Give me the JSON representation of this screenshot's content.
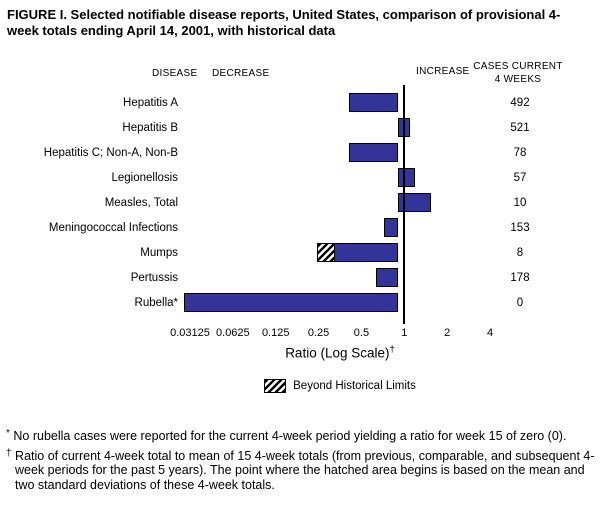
{
  "title": "FIGURE I. Selected notifiable disease reports, United States, comparison of provisional 4-week totals ending April 14, 2001, with historical data",
  "headers": {
    "disease": "DISEASE",
    "decrease": "DECREASE",
    "increase": "INCREASE",
    "cases_line1": "CASES CURRENT",
    "cases_line2": "4 WEEKS"
  },
  "chart_data": {
    "type": "bar",
    "orientation": "horizontal",
    "scale": "log",
    "x_range": [
      0.03125,
      4
    ],
    "baseline": 1,
    "x_ticks": [
      0.03125,
      0.0625,
      0.125,
      0.25,
      0.5,
      1,
      2,
      4
    ],
    "x_tick_labels": [
      "0.03125",
      "0.0625",
      "0.125",
      "0.25",
      "0.5",
      "1",
      "2",
      "4"
    ],
    "xlabel": "Ratio (Log Scale)",
    "xlabel_marker": "†",
    "legend_label": "Beyond Historical Limits",
    "bar_color": "#333399",
    "rows": [
      {
        "disease": "Hepatitis A",
        "ratio": 0.45,
        "cases": "492"
      },
      {
        "disease": "Hepatitis B",
        "ratio": 1.2,
        "cases": "521"
      },
      {
        "disease": "Hepatitis C; Non-A, Non-B",
        "ratio": 0.45,
        "cases": "78"
      },
      {
        "disease": "Legionellosis",
        "ratio": 1.3,
        "cases": "57"
      },
      {
        "disease": "Measles, Total",
        "ratio": 1.7,
        "cases": "10"
      },
      {
        "disease": "Meningococcal Infections",
        "ratio": 0.8,
        "cases": "153"
      },
      {
        "disease": "Mumps",
        "ratio": 0.27,
        "cases": "8",
        "hatch_to": 0.35,
        "beyond_historical_limits": true
      },
      {
        "disease": "Pertussis",
        "ratio": 0.7,
        "cases": "178"
      },
      {
        "disease": "Rubella*",
        "ratio": 0.03125,
        "cases": "0"
      }
    ]
  },
  "footnotes": [
    {
      "marker": "*",
      "text": "No rubella cases were reported for the current 4-week period yielding a ratio for week 15 of zero (0)."
    },
    {
      "marker": "†",
      "text": "Ratio of current 4-week total to mean of 15 4-week totals (from previous, comparable, and subsequent 4-week periods for the past 5 years). The point where the hatched area begins is based on the mean and two standard deviations of these 4-week totals."
    }
  ]
}
